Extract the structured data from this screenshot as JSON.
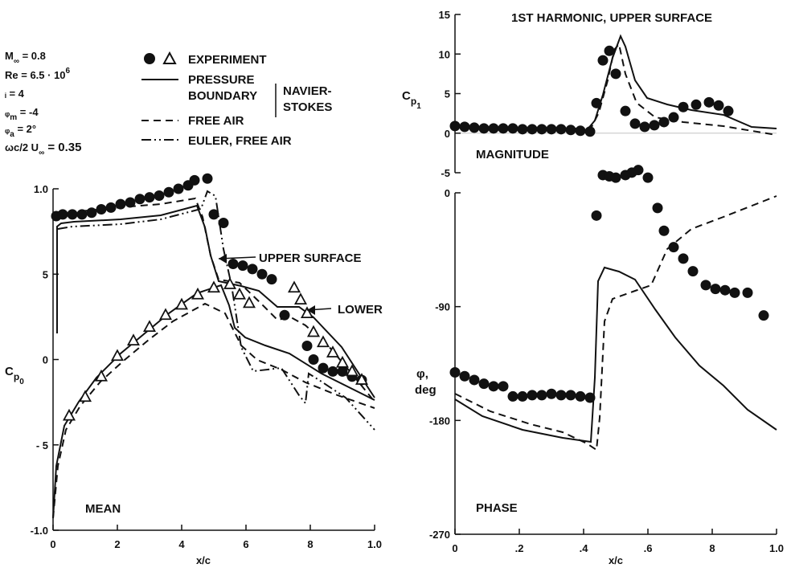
{
  "conditions": [
    {
      "sym": "M",
      "sub": "∞",
      "rest": " = 0.8"
    },
    {
      "sym": "Re",
      "sub": "",
      "rest": " = 6.5 · 10",
      "sup": "6"
    },
    {
      "sym": "ᵢ",
      "sub": "",
      "rest": " = 4"
    },
    {
      "sym": "ᵩ",
      "sub": "m",
      "rest": " = -4"
    },
    {
      "sym": "ᵩ",
      "sub": "a",
      "rest": " = 2°"
    },
    {
      "sym": "ωc/2 U",
      "sub": "∞",
      "rest": " = 0.35"
    }
  ],
  "legend": {
    "experiment": "EXPERIMENT",
    "pressure_boundary_1": "PRESSURE",
    "pressure_boundary_2": "BOUNDARY",
    "navier_1": "NAVIER-",
    "navier_2": "STOKES",
    "free_air": "FREE AIR",
    "euler_free_air": "EULER, FREE AIR"
  },
  "colors": {
    "ink": "#111111"
  },
  "chart_data": [
    {
      "id": "mean",
      "type": "scatter",
      "title": "",
      "annotation": "MEAN",
      "xlabel": "x/c",
      "ylabel": "C",
      "ylabel_sub": "p",
      "ylabel_subsub": "0",
      "xlim": [
        0,
        1.0
      ],
      "ylim": [
        -1.0,
        1.0
      ],
      "x_ticks": [
        "0",
        "2",
        "4",
        "6",
        "8",
        "1.0"
      ],
      "x_tick_values": [
        0,
        0.2,
        0.4,
        0.6,
        0.8,
        1.0
      ],
      "y_ticks": [
        "1.0",
        "5",
        "0",
        "- 5",
        "-1.0"
      ],
      "y_tick_values": [
        1.0,
        0.5,
        0,
        -0.5,
        -1.0
      ],
      "labels": {
        "upper": "UPPER SURFACE",
        "lower": "LOWER"
      },
      "series": [
        {
          "marker": "circle",
          "x": [
            0.01,
            0.03,
            0.06,
            0.09,
            0.12,
            0.15,
            0.18,
            0.21,
            0.24,
            0.27,
            0.3,
            0.33,
            0.36,
            0.39,
            0.42,
            0.44,
            0.48,
            0.5,
            0.53,
            0.56,
            0.59,
            0.62,
            0.65,
            0.68,
            0.72,
            0.79,
            0.81,
            0.84,
            0.87,
            0.9,
            0.93,
            0.96
          ],
          "y": [
            0.84,
            0.85,
            0.85,
            0.85,
            0.86,
            0.88,
            0.89,
            0.91,
            0.92,
            0.94,
            0.95,
            0.96,
            0.98,
            1.0,
            1.02,
            1.05,
            1.06,
            0.85,
            0.8,
            0.56,
            0.55,
            0.53,
            0.5,
            0.47,
            0.26,
            0.08,
            0.0,
            -0.05,
            -0.07,
            -0.07,
            -0.1,
            -0.12
          ]
        },
        {
          "marker": "triangle",
          "x": [
            0.05,
            0.1,
            0.15,
            0.2,
            0.25,
            0.3,
            0.35,
            0.4,
            0.45,
            0.5,
            0.55,
            0.58,
            0.61,
            0.75,
            0.77,
            0.79,
            0.81,
            0.84,
            0.87,
            0.9,
            0.93,
            0.96
          ],
          "y": [
            -0.33,
            -0.22,
            -0.1,
            0.02,
            0.11,
            0.19,
            0.26,
            0.32,
            0.38,
            0.42,
            0.44,
            0.38,
            0.33,
            0.42,
            0.35,
            0.27,
            0.16,
            0.1,
            0.04,
            -0.02,
            -0.07,
            -0.12
          ]
        }
      ]
    },
    {
      "id": "magnitude",
      "type": "line",
      "title": "1ST HARMONIC, UPPER SURFACE",
      "annotation": "MAGNITUDE",
      "xlabel": "",
      "ylabel": "C",
      "ylabel_sub": "p",
      "ylabel_subsub": "1",
      "xlim": [
        0,
        1.0
      ],
      "ylim": [
        -5,
        15
      ],
      "y_ticks": [
        "15",
        "10",
        "5",
        "0",
        "-5"
      ],
      "y_tick_values": [
        15,
        10,
        5,
        0,
        -5
      ],
      "series": [
        {
          "marker": "circle",
          "x": [
            0.0,
            0.03,
            0.06,
            0.09,
            0.12,
            0.15,
            0.18,
            0.21,
            0.24,
            0.27,
            0.3,
            0.33,
            0.36,
            0.39,
            0.42,
            0.44,
            0.46,
            0.48,
            0.5,
            0.53,
            0.56,
            0.59,
            0.62,
            0.65,
            0.68,
            0.71,
            0.75,
            0.79,
            0.82,
            0.85
          ],
          "y": [
            0.9,
            0.8,
            0.7,
            0.6,
            0.6,
            0.6,
            0.6,
            0.5,
            0.5,
            0.5,
            0.5,
            0.5,
            0.4,
            0.3,
            0.2,
            3.8,
            9.2,
            10.4,
            7.5,
            2.8,
            1.2,
            0.8,
            1.0,
            1.4,
            2.0,
            3.3,
            3.6,
            3.9,
            3.5,
            2.8
          ]
        }
      ]
    },
    {
      "id": "phase",
      "type": "line",
      "title": "",
      "annotation": "PHASE",
      "xlabel": "x/c",
      "ylabel": "φ,",
      "ylabel2": "deg",
      "xlim": [
        0,
        1.0
      ],
      "ylim": [
        -270,
        0
      ],
      "x_ticks": [
        "0",
        ".2",
        ".4",
        ".6",
        "8",
        "1.0"
      ],
      "x_tick_values": [
        0,
        0.2,
        0.4,
        0.6,
        0.8,
        1.0
      ],
      "y_ticks": [
        "0",
        "-90",
        "-180",
        "-270"
      ],
      "y_tick_values": [
        0,
        -90,
        -180,
        -270
      ],
      "series": [
        {
          "marker": "circle",
          "x": [
            0.0,
            0.03,
            0.06,
            0.09,
            0.12,
            0.15,
            0.18,
            0.21,
            0.24,
            0.27,
            0.3,
            0.33,
            0.36,
            0.39,
            0.42,
            0.44,
            0.46,
            0.48,
            0.5,
            0.53,
            0.55,
            0.57,
            0.6,
            0.63,
            0.65,
            0.68,
            0.71,
            0.74,
            0.78,
            0.81,
            0.84,
            0.87,
            0.91,
            0.96
          ],
          "y": [
            -142,
            -145,
            -148,
            -151,
            -153,
            -153,
            -161,
            -161,
            -160,
            -160,
            -159,
            -160,
            -160,
            -161,
            -162,
            -18,
            14,
            13,
            12,
            14,
            16,
            18,
            12,
            -12,
            -30,
            -43,
            -52,
            -62,
            -73,
            -76,
            -77,
            -79,
            -79,
            -97
          ]
        }
      ]
    }
  ]
}
